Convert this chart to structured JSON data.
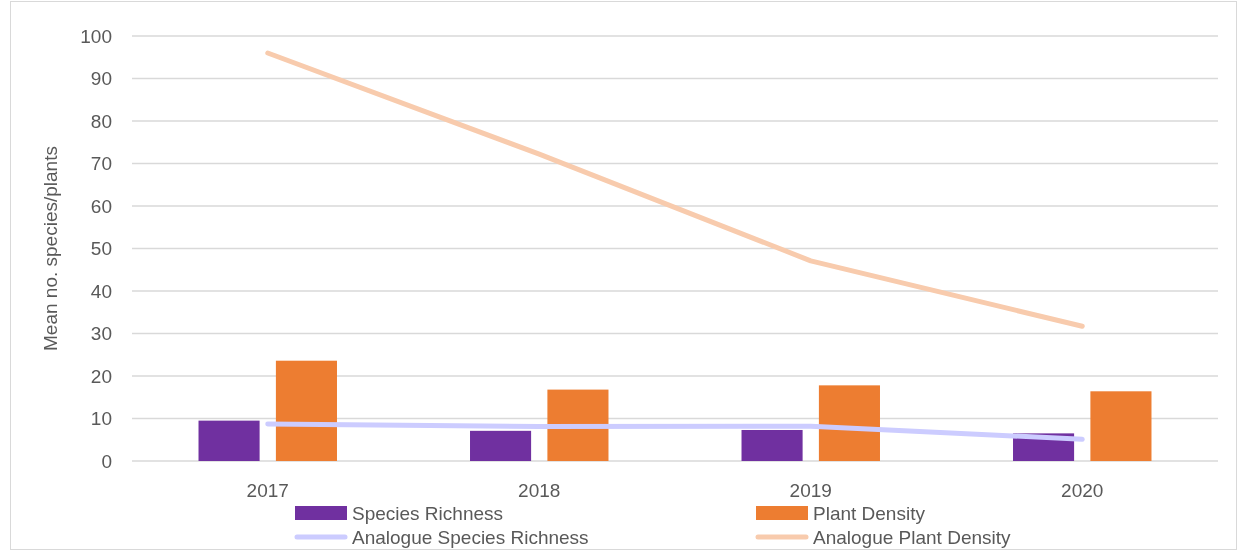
{
  "chart_data": {
    "type": "bar",
    "ylabel": "Mean no. species/plants",
    "categories": [
      "2017",
      "2018",
      "2019",
      "2020"
    ],
    "series": [
      {
        "name": "Species Richness",
        "color": "#7030a0",
        "values": [
          9.5,
          7.1,
          7.3,
          6.5
        ]
      },
      {
        "name": "Plant Density",
        "color": "#ed7d31",
        "values": [
          23.6,
          16.8,
          17.8,
          16.4
        ]
      },
      {
        "name": "Analogue Species Richness",
        "type": "line",
        "color": "#ccccff",
        "values": [
          8.7,
          8.1,
          8.2,
          5.1
        ]
      },
      {
        "name": "Analogue Plant Density",
        "type": "line",
        "color": "#f8cbad",
        "values": [
          96,
          72.2,
          47.1,
          31.7
        ]
      }
    ],
    "ylim": [
      0,
      100
    ],
    "yticks": [
      0,
      10,
      20,
      30,
      40,
      50,
      60,
      70,
      80,
      90,
      100
    ],
    "grid": "y",
    "legend": "bottom",
    "line_style": "solid"
  }
}
